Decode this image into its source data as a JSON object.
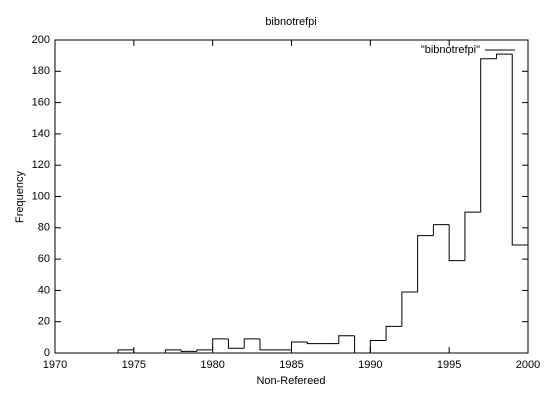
{
  "chart_data": {
    "type": "histogram",
    "title": "bibnotrefpi",
    "x_label": "Non-Refereed",
    "y_label": "Frequency",
    "bins": [
      1970,
      1971,
      1972,
      1973,
      1974,
      1975,
      1976,
      1977,
      1978,
      1979,
      1980,
      1981,
      1982,
      1983,
      1984,
      1985,
      1986,
      1987,
      1988,
      1989,
      1990,
      1991,
      1992,
      1993,
      1994,
      1995,
      1996,
      1997,
      1998,
      1999,
      2000
    ],
    "series": [
      {
        "name": "\"bibnotrefpi\"",
        "color": "#000000",
        "values": [
          0,
          0,
          0,
          0,
          2,
          0,
          0,
          2,
          1,
          2,
          9,
          3,
          9,
          2,
          2,
          7,
          6,
          6,
          11,
          0,
          8,
          17,
          39,
          75,
          82,
          59,
          90,
          188,
          191,
          69
        ]
      }
    ],
    "xlim": [
      1970,
      2000
    ],
    "xticks": [
      1970,
      1975,
      1980,
      1985,
      1990,
      1995,
      2000
    ],
    "ylim": [
      0,
      200
    ],
    "yticks": [
      0,
      20,
      40,
      60,
      80,
      100,
      120,
      140,
      160,
      180,
      200
    ]
  }
}
